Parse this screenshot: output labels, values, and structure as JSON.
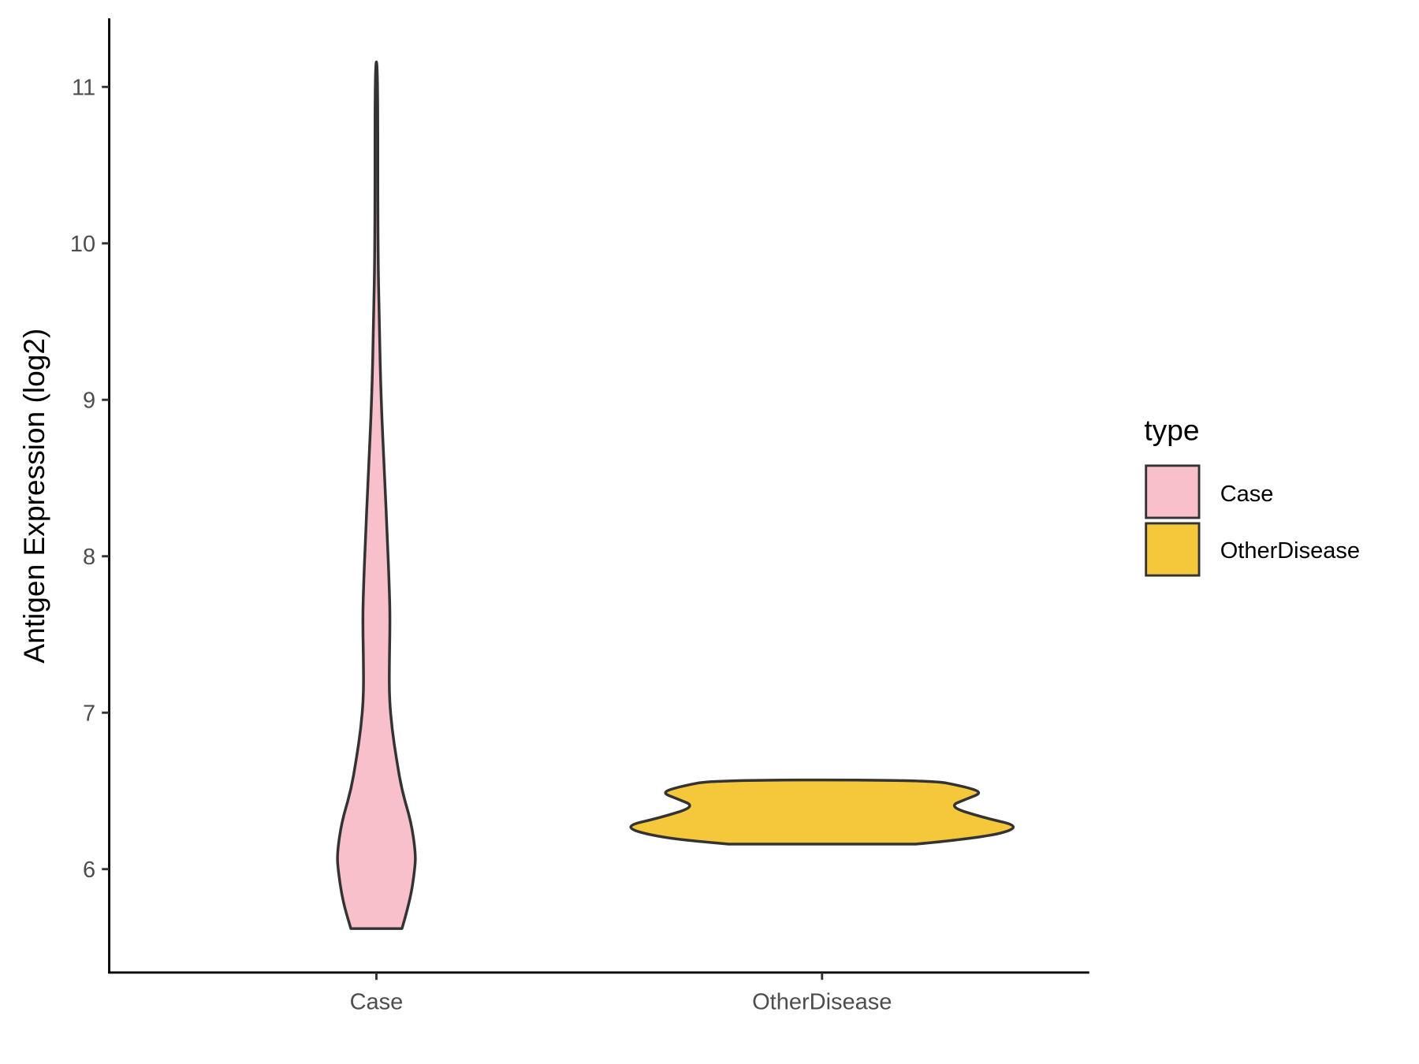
{
  "chart_data": {
    "type": "violin",
    "title": "",
    "xlabel": "",
    "ylabel": "Antigen Expression (log2)",
    "ylim": [
      5.33,
      11.44
    ],
    "yticks": [
      6,
      7,
      8,
      9,
      10,
      11
    ],
    "categories": [
      "Case",
      "OtherDisease"
    ],
    "grid": false,
    "legend": {
      "title": "type",
      "placement": "right",
      "entries": [
        "Case",
        "OtherDisease"
      ]
    },
    "colors": {
      "Case": "#f7c0cb",
      "OtherDisease": "#f5c83c",
      "outline": "#333333"
    },
    "series": [
      {
        "name": "Case",
        "min": 5.62,
        "max": 11.16,
        "profile": [
          [
            5.62,
            0.127
          ],
          [
            5.8,
            0.168
          ],
          [
            6.0,
            0.191
          ],
          [
            6.1,
            0.195
          ],
          [
            6.3,
            0.173
          ],
          [
            6.5,
            0.127
          ],
          [
            6.7,
            0.1
          ],
          [
            6.9,
            0.077
          ],
          [
            7.1,
            0.064
          ],
          [
            7.3,
            0.064
          ],
          [
            7.6,
            0.068
          ],
          [
            7.8,
            0.064
          ],
          [
            8.1,
            0.055
          ],
          [
            8.5,
            0.041
          ],
          [
            9.0,
            0.023
          ],
          [
            9.5,
            0.014
          ],
          [
            10.0,
            0.007
          ],
          [
            11.16,
            0.007
          ]
        ]
      },
      {
        "name": "OtherDisease",
        "min": 6.16,
        "max": 6.57,
        "profile": [
          [
            6.16,
            0.464
          ],
          [
            6.2,
            0.8
          ],
          [
            6.27,
            1.0
          ],
          [
            6.33,
            0.8
          ],
          [
            6.4,
            0.627
          ],
          [
            6.45,
            0.72
          ],
          [
            6.49,
            0.8
          ],
          [
            6.53,
            0.7
          ],
          [
            6.57,
            0.536
          ]
        ]
      }
    ]
  }
}
